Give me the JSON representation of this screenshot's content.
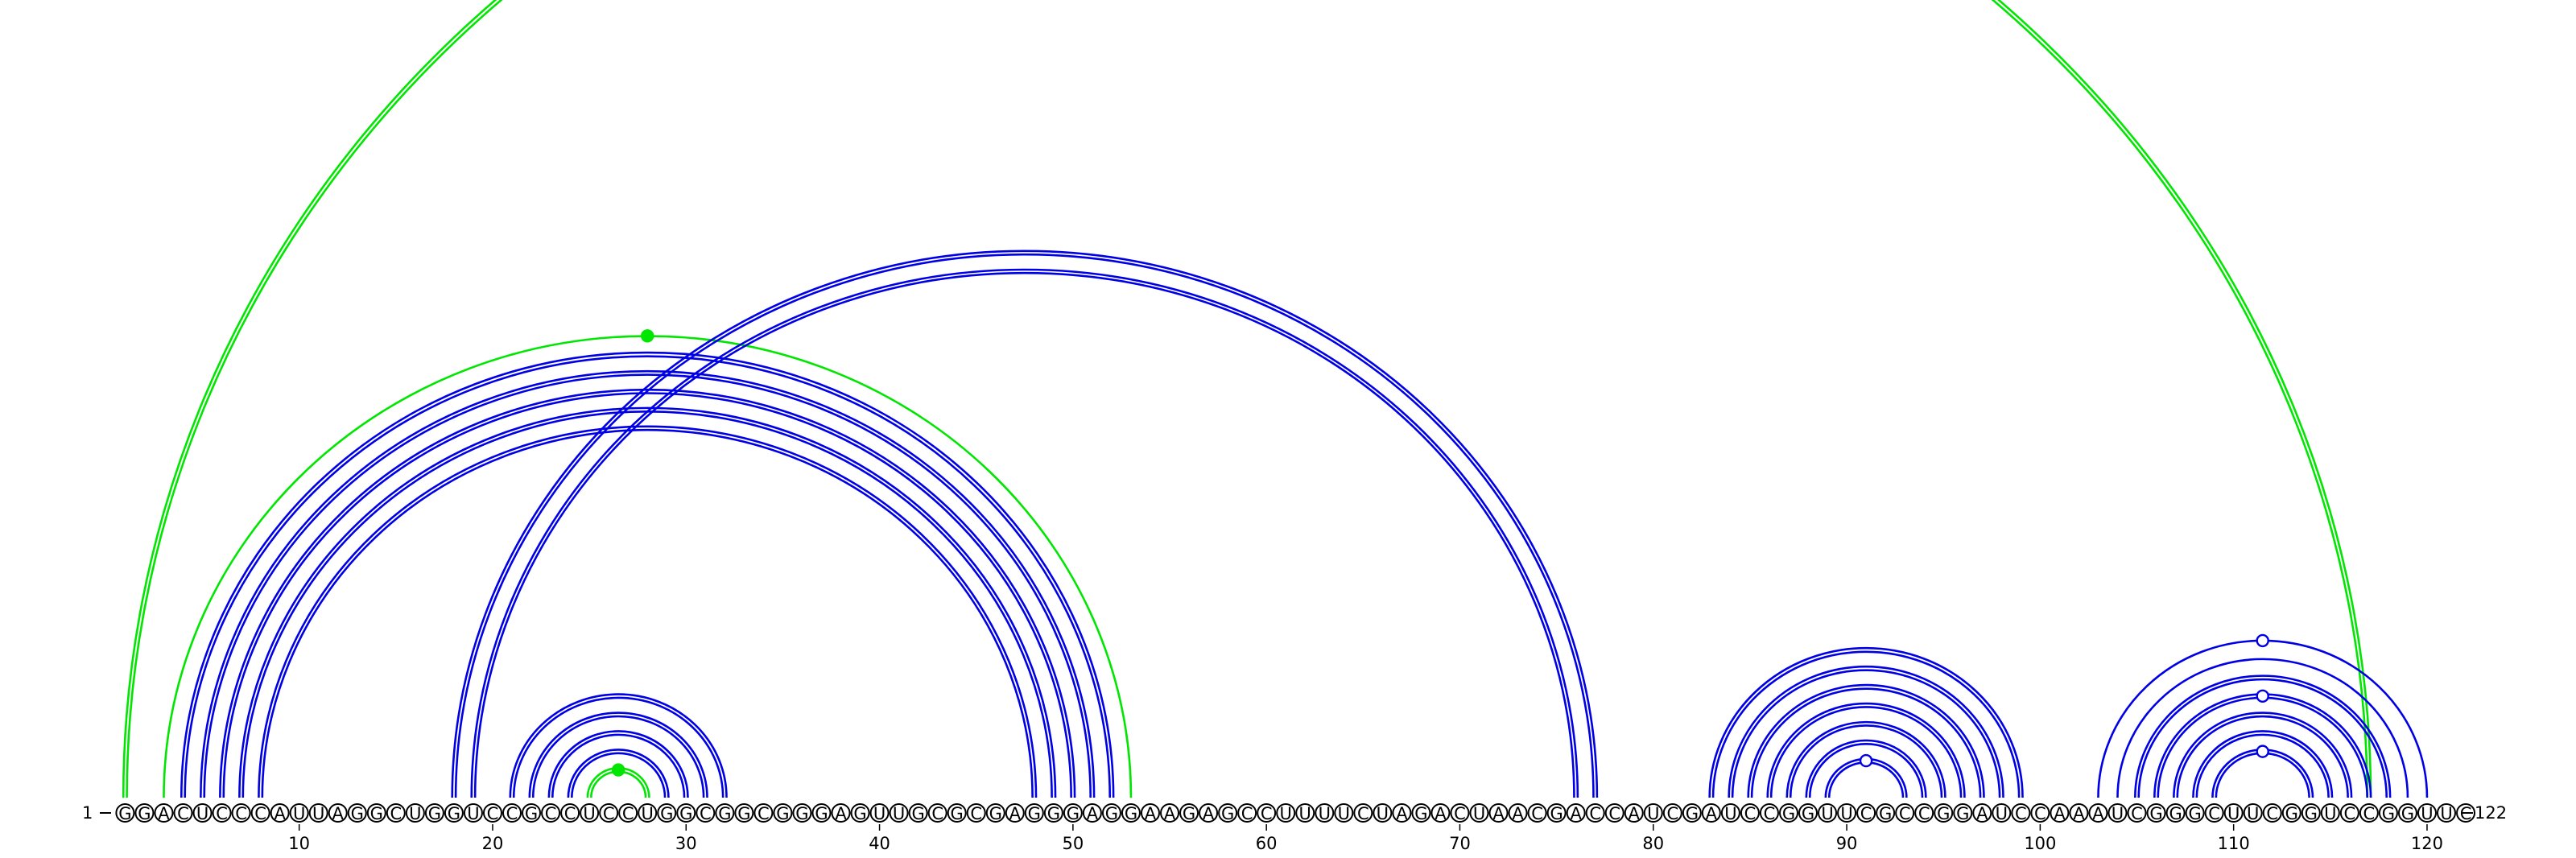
{
  "diagram": {
    "type": "rna-arc-diagram",
    "sequence": "GGACUCCCAUUAGGCUGGUCCGCCUCCUGGCGGCGGGAGUUGCGCGAGGGAGGAAGAGCCUUUUCUAGACUAACGACCAUCGAUCCGGUUCGCCGGAUCCAAAUCGGGCUUCGGUCCGGUUC",
    "start_label": "1",
    "end_label": "122",
    "tick_labels": [
      "10",
      "20",
      "30",
      "40",
      "50",
      "60",
      "70",
      "80",
      "90",
      "100",
      "110",
      "120"
    ],
    "colors": {
      "paired_arc": "#0000e6",
      "highlight_arc": "#00e600",
      "nucleotide_outline": "#000000",
      "background": "#ffffff"
    },
    "arcs": [
      {
        "i": 1,
        "j": 117,
        "color": "highlight",
        "double": true
      },
      {
        "i": 3,
        "j": 53,
        "color": "highlight"
      },
      {
        "i": 4,
        "j": 52,
        "color": "paired",
        "double": true
      },
      {
        "i": 5,
        "j": 51,
        "color": "paired",
        "double": true
      },
      {
        "i": 6,
        "j": 50,
        "color": "paired",
        "double": true
      },
      {
        "i": 7,
        "j": 49,
        "color": "paired",
        "double": true
      },
      {
        "i": 8,
        "j": 48,
        "color": "paired",
        "double": true
      },
      {
        "i": 18,
        "j": 77,
        "color": "paired",
        "double": true
      },
      {
        "i": 19,
        "j": 76,
        "color": "paired",
        "double": true
      },
      {
        "i": 21,
        "j": 32,
        "color": "paired",
        "double": true
      },
      {
        "i": 22,
        "j": 31,
        "color": "paired",
        "double": true
      },
      {
        "i": 23,
        "j": 30,
        "color": "paired",
        "double": true
      },
      {
        "i": 24,
        "j": 29,
        "color": "paired",
        "double": true
      },
      {
        "i": 25,
        "j": 28,
        "color": "highlight",
        "double": true
      },
      {
        "i": 83,
        "j": 99,
        "color": "paired",
        "double": true
      },
      {
        "i": 84,
        "j": 98,
        "color": "paired",
        "double": true
      },
      {
        "i": 85,
        "j": 97,
        "color": "paired",
        "double": true
      },
      {
        "i": 86,
        "j": 96,
        "color": "paired",
        "double": true
      },
      {
        "i": 87,
        "j": 95,
        "color": "paired",
        "double": true
      },
      {
        "i": 88,
        "j": 94,
        "color": "paired",
        "double": true
      },
      {
        "i": 89,
        "j": 93,
        "color": "paired",
        "double": true
      },
      {
        "i": 103,
        "j": 120,
        "color": "paired"
      },
      {
        "i": 104,
        "j": 119,
        "color": "paired"
      },
      {
        "i": 105,
        "j": 118,
        "color": "paired",
        "double": true
      },
      {
        "i": 106,
        "j": 117,
        "color": "paired",
        "double": true
      },
      {
        "i": 107,
        "j": 116,
        "color": "paired",
        "double": true
      },
      {
        "i": 108,
        "j": 115,
        "color": "paired",
        "double": true
      },
      {
        "i": 109,
        "j": 114,
        "color": "paired",
        "double": true
      }
    ],
    "markers": [
      {
        "i": 3,
        "j": 53,
        "style": "filled",
        "color": "highlight"
      },
      {
        "i": 25,
        "j": 28,
        "style": "filled",
        "color": "highlight"
      },
      {
        "i": 89,
        "j": 93,
        "style": "open",
        "color": "paired"
      },
      {
        "i": 103,
        "j": 120,
        "style": "open",
        "color": "paired"
      },
      {
        "i": 106,
        "j": 117,
        "style": "open",
        "color": "paired"
      },
      {
        "i": 109,
        "j": 114,
        "style": "open",
        "color": "paired"
      }
    ]
  }
}
